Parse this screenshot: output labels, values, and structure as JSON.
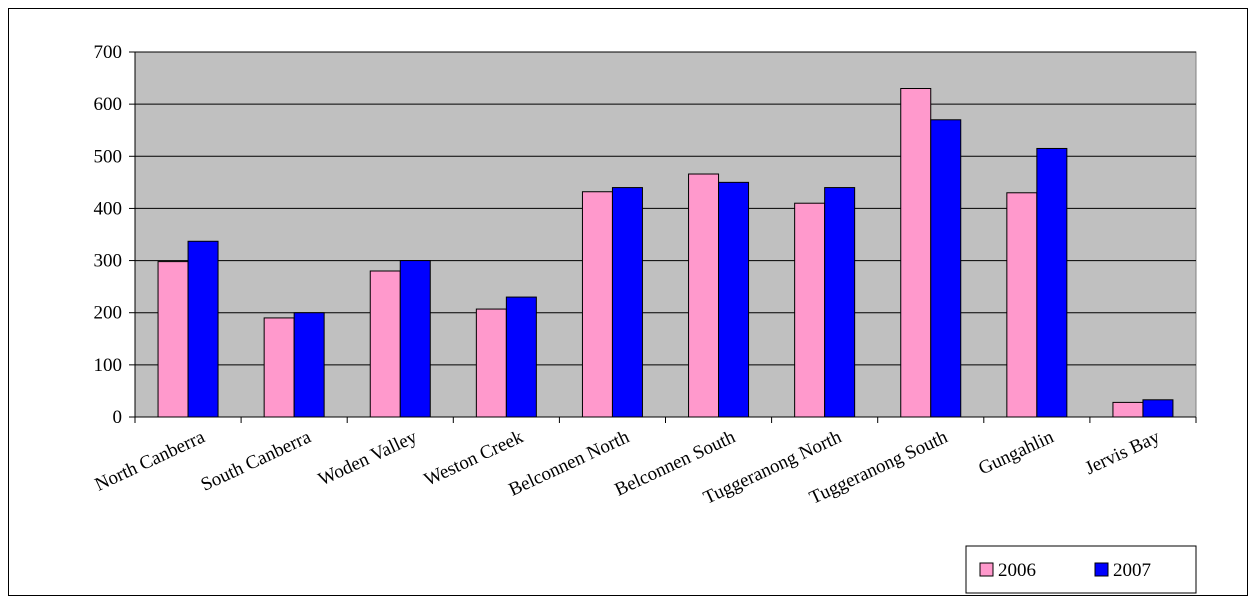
{
  "chart_data": {
    "type": "bar",
    "categories": [
      "North Canberra",
      "South Canberra",
      "Woden Valley",
      "Weston Creek",
      "Belconnen North",
      "Belconnen South",
      "Tuggeranong North",
      "Tuggeranong South",
      "Gungahlin",
      "Jervis Bay"
    ],
    "series": [
      {
        "name": "2006",
        "color": "#ff99cc",
        "values": [
          298,
          190,
          280,
          207,
          432,
          466,
          410,
          630,
          430,
          28
        ]
      },
      {
        "name": "2007",
        "color": "#0000ff",
        "values": [
          337,
          200,
          300,
          230,
          440,
          450,
          440,
          570,
          515,
          33
        ]
      }
    ],
    "y_ticks": [
      "0",
      "100",
      "200",
      "300",
      "400",
      "500",
      "600",
      "700"
    ],
    "ylim": [
      0,
      700
    ],
    "title": "",
    "xlabel": "",
    "ylabel": "",
    "grid": true,
    "plot_background": "#c0c0c0",
    "legend_position": "bottom-right"
  }
}
